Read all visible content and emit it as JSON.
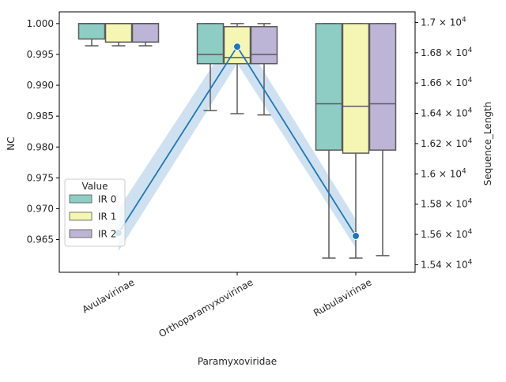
{
  "chart_data": {
    "type": "box",
    "xlabel": "Paramyxoviridae",
    "ylabel_left": "NC",
    "ylabel_right": "Sequence_Length",
    "categories": [
      "Avulavirinae",
      "Orthoparamyxovirinae",
      "Rubulavirinae"
    ],
    "ylim_left": [
      0.9597,
      1.0019
    ],
    "ylim_right": [
      15350,
      17070
    ],
    "left_ticks": [
      "0.965",
      "0.970",
      "0.975",
      "0.980",
      "0.985",
      "0.990",
      "0.995",
      "1.000"
    ],
    "right_ticks": [
      {
        "value": 15400,
        "base": "1.54 × 10",
        "exp": "4"
      },
      {
        "value": 15600,
        "base": "1.56 × 10",
        "exp": "4"
      },
      {
        "value": 15800,
        "base": "1.58 × 10",
        "exp": "4"
      },
      {
        "value": 16000,
        "base": "1.6 × 10",
        "exp": "4"
      },
      {
        "value": 16200,
        "base": "1.62 × 10",
        "exp": "4"
      },
      {
        "value": 16400,
        "base": "1.64 × 10",
        "exp": "4"
      },
      {
        "value": 16600,
        "base": "1.66 × 10",
        "exp": "4"
      },
      {
        "value": 16800,
        "base": "1.68 × 10",
        "exp": "4"
      },
      {
        "value": 17000,
        "base": "1.7 × 10",
        "exp": "4"
      }
    ],
    "legend": {
      "title": "Value",
      "position": "lower-left"
    },
    "box_series": [
      {
        "name": "IR 0",
        "color": "#8ecdc3",
        "boxes": [
          {
            "whislo": 0.9964,
            "q1": 0.9975,
            "med": 1.0,
            "q3": 1.0,
            "whishi": 1.0
          },
          {
            "whislo": 0.9859,
            "q1": 0.9935,
            "med": 0.995,
            "q3": 1.0,
            "whishi": 1.0
          },
          {
            "whislo": 0.962,
            "q1": 0.9795,
            "med": 0.987,
            "q3": 1.0,
            "whishi": 1.0
          }
        ]
      },
      {
        "name": "IR 1",
        "color": "#f6f6b4",
        "boxes": [
          {
            "whislo": 0.9964,
            "q1": 0.997,
            "med": 1.0,
            "q3": 1.0,
            "whishi": 1.0
          },
          {
            "whislo": 0.9854,
            "q1": 0.9935,
            "med": 0.9945,
            "q3": 0.9995,
            "whishi": 1.0
          },
          {
            "whislo": 0.962,
            "q1": 0.979,
            "med": 0.9866,
            "q3": 1.0,
            "whishi": 1.0
          }
        ]
      },
      {
        "name": "IR 2",
        "color": "#bcb5d6",
        "boxes": [
          {
            "whislo": 0.9964,
            "q1": 0.997,
            "med": 1.0,
            "q3": 1.0,
            "whishi": 1.0
          },
          {
            "whislo": 0.9852,
            "q1": 0.9935,
            "med": 0.995,
            "q3": 0.9995,
            "whishi": 1.0
          },
          {
            "whislo": 0.9624,
            "q1": 0.9795,
            "med": 0.987,
            "q3": 1.0,
            "whishi": 1.0
          }
        ]
      }
    ],
    "line_series": {
      "axis": "right",
      "color": "#1f77b4",
      "band_color": "#a8c8e4",
      "points": [
        {
          "category": "Avulavirinae",
          "value": 15610,
          "ci_low": 15490,
          "ci_high": 15770
        },
        {
          "category": "Orthoparamyxovirinae",
          "value": 16840,
          "ci_low": 16730,
          "ci_high": 16960
        },
        {
          "category": "Rubulavirinae",
          "value": 15590,
          "ci_low": 15510,
          "ci_high": 15700
        }
      ]
    }
  }
}
